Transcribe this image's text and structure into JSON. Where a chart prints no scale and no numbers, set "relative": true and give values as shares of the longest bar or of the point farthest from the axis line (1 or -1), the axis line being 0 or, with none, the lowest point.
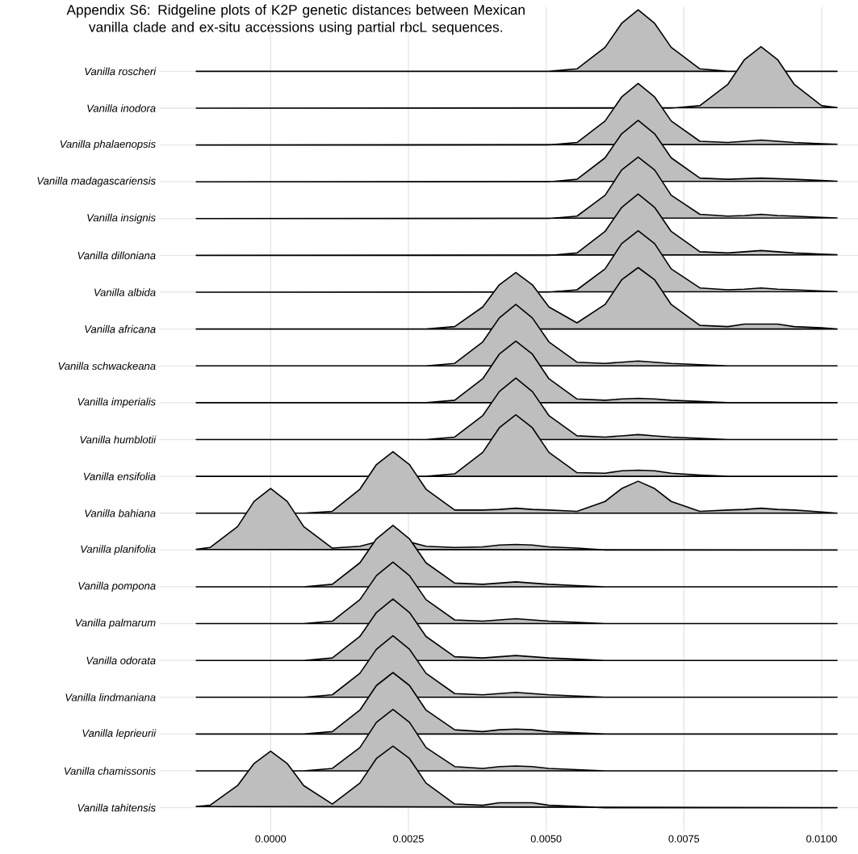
{
  "chart_data": [
    {
      "type": "area",
      "relative": true,
      "title": "Appendix S6: Ridgeline plots of K2P genetic distances between Mexican vanilla clade and ex-situ accessions using partial rbcL sequences.",
      "x": [
        -0.00135,
        -0.0011,
        -0.0006,
        -0.0003,
        0,
        0.0003,
        0.0006,
        0.00112,
        0.00162,
        0.00192,
        0.00222,
        0.00252,
        0.00282,
        0.00334,
        0.00385,
        0.00415,
        0.00445,
        0.00475,
        0.00505,
        0.00556,
        0.00607,
        0.00637,
        0.00667,
        0.00697,
        0.00727,
        0.00779,
        0.0083,
        0.0086,
        0.0089,
        0.0092,
        0.0095,
        0.01,
        0.01028
      ],
      "xlim": [
        -0.00202,
        0.01066
      ],
      "xticks": [
        {
          "value": 0,
          "label": null
        },
        {
          "value": 0.0025,
          "label": null
        },
        {
          "value": 0.005,
          "label": null
        },
        {
          "value": 0.0075,
          "label": null
        },
        {
          "value": 0.01,
          "label": null
        }
      ],
      "grid": "x",
      "tick_labels": false,
      "series": [
        {
          "name": "Vanilla roscheri",
          "color": "#bebebe",
          "values": [
            0,
            0,
            0,
            0,
            0,
            0,
            0,
            0,
            0,
            0,
            0,
            0,
            0,
            0,
            0,
            0,
            0,
            0,
            0,
            0.04,
            0.39,
            0.78,
            1,
            0.78,
            0.39,
            0.04,
            0,
            null,
            null,
            null,
            0,
            0,
            0
          ]
        }
      ]
    },
    {
      "type": "area",
      "relative": true,
      "x": [
        -0.00135,
        -0.0011,
        -0.0006,
        -0.0003,
        0,
        0.0003,
        0.0006,
        0.00112,
        0.00162,
        0.00192,
        0.00222,
        0.00252,
        0.00282,
        0.00334,
        0.00385,
        0.00415,
        0.00445,
        0.00475,
        0.00505,
        0.00556,
        0.00607,
        0.00637,
        0.00667,
        0.00697,
        0.00727,
        0.00779,
        0.0083,
        0.0086,
        0.0089,
        0.0092,
        0.0095,
        0.01,
        0.01028
      ],
      "xlim": [
        -0.00202,
        0.01066
      ],
      "xticks": [
        {
          "value": 0,
          "label": null
        },
        {
          "value": 0.0025,
          "label": null
        },
        {
          "value": 0.005,
          "label": null
        },
        {
          "value": 0.0075,
          "label": null
        },
        {
          "value": 0.01,
          "label": null
        }
      ],
      "grid": "x",
      "tick_labels": false,
      "series": [
        {
          "name": "Vanilla inodora",
          "color": "#bebebe",
          "values": [
            0,
            0,
            0,
            0,
            0,
            0,
            0,
            0,
            0,
            0,
            0,
            0,
            0,
            0,
            0,
            0,
            0,
            0,
            0,
            0,
            0,
            null,
            null,
            null,
            0,
            0.04,
            0.39,
            0.79,
            1,
            0.79,
            0.39,
            0.04,
            0.01
          ]
        }
      ]
    },
    {
      "type": "area",
      "relative": true,
      "x": [
        -0.00135,
        -0.0011,
        -0.0006,
        -0.0003,
        0,
        0.0003,
        0.0006,
        0.00112,
        0.00162,
        0.00192,
        0.00222,
        0.00252,
        0.00282,
        0.00334,
        0.00385,
        0.00415,
        0.00445,
        0.00475,
        0.00505,
        0.00556,
        0.00607,
        0.00637,
        0.00667,
        0.00697,
        0.00727,
        0.00779,
        0.0083,
        0.0086,
        0.0089,
        0.0092,
        0.0095,
        0.01,
        0.01028
      ],
      "xlim": [
        -0.00202,
        0.01066
      ],
      "xticks": [
        {
          "value": 0,
          "label": null
        },
        {
          "value": 0.0025,
          "label": null
        },
        {
          "value": 0.005,
          "label": null
        },
        {
          "value": 0.0075,
          "label": null
        },
        {
          "value": 0.01,
          "label": null
        }
      ],
      "grid": "x",
      "tick_labels": false,
      "series": [
        {
          "name": "Vanilla phalaenopsis",
          "color": "#bebebe",
          "values": [
            0,
            0,
            0,
            0,
            0,
            0,
            0,
            0,
            0,
            0,
            0,
            0,
            0,
            0,
            0,
            0,
            0,
            0,
            0,
            0.04,
            0.39,
            0.78,
            1,
            0.78,
            0.39,
            0.06,
            0.04,
            0.06,
            0.08,
            0.06,
            0.04,
            0.02,
            0.01
          ]
        }
      ]
    },
    {
      "type": "area",
      "relative": true,
      "x": [
        -0.00135,
        -0.0011,
        -0.0006,
        -0.0003,
        0,
        0.0003,
        0.0006,
        0.00112,
        0.00162,
        0.00192,
        0.00222,
        0.00252,
        0.00282,
        0.00334,
        0.00385,
        0.00415,
        0.00445,
        0.00475,
        0.00505,
        0.00556,
        0.00607,
        0.00637,
        0.00667,
        0.00697,
        0.00727,
        0.00779,
        0.0083,
        0.0086,
        0.0089,
        0.0092,
        0.0095,
        0.01,
        0.01028
      ],
      "xlim": [
        -0.00202,
        0.01066
      ],
      "xticks": [
        {
          "value": 0,
          "label": null
        },
        {
          "value": 0.0025,
          "label": null
        },
        {
          "value": 0.005,
          "label": null
        },
        {
          "value": 0.0075,
          "label": null
        },
        {
          "value": 0.01,
          "label": null
        }
      ],
      "grid": "x",
      "tick_labels": false,
      "series": [
        {
          "name": "Vanilla madagascariensis",
          "color": "#bebebe",
          "values": [
            0,
            0,
            0,
            0,
            0,
            0,
            0,
            0,
            0,
            0,
            0,
            0,
            0,
            0,
            0,
            0,
            0,
            0,
            0,
            0.04,
            0.39,
            0.78,
            1,
            0.78,
            0.39,
            0.06,
            0.04,
            0.05,
            0.06,
            0.05,
            0.04,
            0.02,
            0.01
          ]
        }
      ]
    },
    {
      "type": "area",
      "relative": true,
      "x": [
        -0.00135,
        -0.0011,
        -0.0006,
        -0.0003,
        0,
        0.0003,
        0.0006,
        0.00112,
        0.00162,
        0.00192,
        0.00222,
        0.00252,
        0.00282,
        0.00334,
        0.00385,
        0.00415,
        0.00445,
        0.00475,
        0.00505,
        0.00556,
        0.00607,
        0.00637,
        0.00667,
        0.00697,
        0.00727,
        0.00779,
        0.0083,
        0.0086,
        0.0089,
        0.0092,
        0.0095,
        0.01,
        0.01028
      ],
      "xlim": [
        -0.00202,
        0.01066
      ],
      "xticks": [
        {
          "value": 0,
          "label": null
        },
        {
          "value": 0.0025,
          "label": null
        },
        {
          "value": 0.005,
          "label": null
        },
        {
          "value": 0.0075,
          "label": null
        },
        {
          "value": 0.01,
          "label": null
        }
      ],
      "grid": "x",
      "tick_labels": false,
      "series": [
        {
          "name": "Vanilla insignis",
          "color": "#bebebe",
          "values": [
            0,
            0,
            0,
            0,
            0,
            0,
            0,
            0,
            0,
            0,
            0,
            0,
            0,
            0,
            0,
            0,
            0,
            0,
            0,
            0.04,
            0.38,
            0.79,
            1,
            0.79,
            0.38,
            0.07,
            0.04,
            0.05,
            0.07,
            0.05,
            0.04,
            0.02,
            0.01
          ]
        }
      ]
    },
    {
      "type": "area",
      "relative": true,
      "x": [
        -0.00135,
        -0.0011,
        -0.0006,
        -0.0003,
        0,
        0.0003,
        0.0006,
        0.00112,
        0.00162,
        0.00192,
        0.00222,
        0.00252,
        0.00282,
        0.00334,
        0.00385,
        0.00415,
        0.00445,
        0.00475,
        0.00505,
        0.00556,
        0.00607,
        0.00637,
        0.00667,
        0.00697,
        0.00727,
        0.00779,
        0.0083,
        0.0086,
        0.0089,
        0.0092,
        0.0095,
        0.01,
        0.01028
      ],
      "xlim": [
        -0.00202,
        0.01066
      ],
      "xticks": [
        {
          "value": 0,
          "label": null
        },
        {
          "value": 0.0025,
          "label": null
        },
        {
          "value": 0.005,
          "label": null
        },
        {
          "value": 0.0075,
          "label": null
        },
        {
          "value": 0.01,
          "label": null
        }
      ],
      "grid": "x",
      "tick_labels": false,
      "series": [
        {
          "name": "Vanilla dilloniana",
          "color": "#bebebe",
          "values": [
            0,
            0,
            0,
            0,
            0,
            0,
            0,
            0,
            0,
            0,
            0,
            0,
            0,
            0,
            0,
            0,
            0,
            0,
            0,
            0.04,
            0.39,
            0.78,
            1,
            0.78,
            0.39,
            0.06,
            0.04,
            0.06,
            0.08,
            0.06,
            0.04,
            0.02,
            0.01
          ]
        }
      ]
    },
    {
      "type": "area",
      "relative": true,
      "x": [
        -0.00135,
        -0.0011,
        -0.0006,
        -0.0003,
        0,
        0.0003,
        0.0006,
        0.00112,
        0.00162,
        0.00192,
        0.00222,
        0.00252,
        0.00282,
        0.00334,
        0.00385,
        0.00415,
        0.00445,
        0.00475,
        0.00505,
        0.00556,
        0.00607,
        0.00637,
        0.00667,
        0.00697,
        0.00727,
        0.00779,
        0.0083,
        0.0086,
        0.0089,
        0.0092,
        0.0095,
        0.01,
        0.01028
      ],
      "xlim": [
        -0.00202,
        0.01066
      ],
      "xticks": [
        {
          "value": 0,
          "label": null
        },
        {
          "value": 0.0025,
          "label": null
        },
        {
          "value": 0.005,
          "label": null
        },
        {
          "value": 0.0075,
          "label": null
        },
        {
          "value": 0.01,
          "label": null
        }
      ],
      "grid": "x",
      "tick_labels": false,
      "series": [
        {
          "name": "Vanilla albida",
          "color": "#bebebe",
          "values": [
            0,
            0,
            0,
            0,
            0,
            0,
            0,
            0,
            0,
            0,
            0,
            0,
            0,
            0,
            0,
            null,
            null,
            null,
            0,
            0.04,
            0.38,
            0.79,
            1,
            0.79,
            0.38,
            0.07,
            0.04,
            0.05,
            0.07,
            0.05,
            0.04,
            0.02,
            0.01
          ]
        }
      ]
    },
    {
      "type": "area",
      "relative": true,
      "x": [
        -0.00135,
        -0.0011,
        -0.0006,
        -0.0003,
        0,
        0.0003,
        0.0006,
        0.00112,
        0.00162,
        0.00192,
        0.00222,
        0.00252,
        0.00282,
        0.00334,
        0.00385,
        0.00415,
        0.00445,
        0.00475,
        0.00505,
        0.00556,
        0.00607,
        0.00637,
        0.00667,
        0.00697,
        0.00727,
        0.00779,
        0.0083,
        0.0086,
        0.0089,
        0.0092,
        0.0095,
        0.01,
        0.01028
      ],
      "xlim": [
        -0.00202,
        0.01066
      ],
      "xticks": [
        {
          "value": 0,
          "label": null
        },
        {
          "value": 0.0025,
          "label": null
        },
        {
          "value": 0.005,
          "label": null
        },
        {
          "value": 0.0075,
          "label": null
        },
        {
          "value": 0.01,
          "label": null
        }
      ],
      "grid": "x",
      "tick_labels": false,
      "series": [
        {
          "name": "Vanilla africana",
          "color": "#bebebe",
          "values": [
            0,
            0,
            0,
            0,
            0,
            0,
            0,
            0,
            0,
            0,
            0,
            0,
            0,
            0.04,
            0.36,
            0.72,
            0.92,
            0.72,
            0.36,
            0.1,
            0.4,
            0.8,
            1,
            0.8,
            0.4,
            0.06,
            0.04,
            0.08,
            0.08,
            0.08,
            0.04,
            0.02,
            0
          ]
        }
      ]
    },
    {
      "type": "area",
      "relative": true,
      "x": [
        -0.00135,
        -0.0011,
        -0.0006,
        -0.0003,
        0,
        0.0003,
        0.0006,
        0.00112,
        0.00162,
        0.00192,
        0.00222,
        0.00252,
        0.00282,
        0.00334,
        0.00385,
        0.00415,
        0.00445,
        0.00475,
        0.00505,
        0.00556,
        0.00607,
        0.00637,
        0.00667,
        0.00697,
        0.00727,
        0.00779,
        0.0083,
        0.0086,
        0.0089,
        0.0092,
        0.0095,
        0.01,
        0.01028
      ],
      "xlim": [
        -0.00202,
        0.01066
      ],
      "xticks": [
        {
          "value": 0,
          "label": null
        },
        {
          "value": 0.0025,
          "label": null
        },
        {
          "value": 0.005,
          "label": null
        },
        {
          "value": 0.0075,
          "label": null
        },
        {
          "value": 0.01,
          "label": null
        }
      ],
      "grid": "x",
      "tick_labels": false,
      "series": [
        {
          "name": "Vanilla schwackeana",
          "color": "#bebebe",
          "values": [
            0,
            0,
            0,
            0,
            0,
            0,
            0,
            0,
            0,
            0,
            0,
            0,
            0,
            0.04,
            0.39,
            0.78,
            1,
            0.78,
            0.39,
            0.06,
            0.04,
            0.06,
            0.08,
            0.06,
            0.04,
            0.02,
            0,
            0,
            0,
            0,
            0,
            0,
            0
          ]
        }
      ]
    },
    {
      "type": "area",
      "relative": true,
      "x": [
        -0.00135,
        -0.0011,
        -0.0006,
        -0.0003,
        0,
        0.0003,
        0.0006,
        0.00112,
        0.00162,
        0.00192,
        0.00222,
        0.00252,
        0.00282,
        0.00334,
        0.00385,
        0.00415,
        0.00445,
        0.00475,
        0.00505,
        0.00556,
        0.00607,
        0.00637,
        0.00667,
        0.00697,
        0.00727,
        0.00779,
        0.0083,
        0.0086,
        0.0089,
        0.0092,
        0.0095,
        0.01,
        0.01028
      ],
      "xlim": [
        -0.00202,
        0.01066
      ],
      "xticks": [
        {
          "value": 0,
          "label": null
        },
        {
          "value": 0.0025,
          "label": null
        },
        {
          "value": 0.005,
          "label": null
        },
        {
          "value": 0.0075,
          "label": null
        },
        {
          "value": 0.01,
          "label": null
        }
      ],
      "grid": "x",
      "tick_labels": false,
      "series": [
        {
          "name": "Vanilla imperialis",
          "color": "#bebebe",
          "values": [
            0,
            0,
            0,
            0,
            0,
            0,
            0,
            0,
            0,
            0,
            0,
            0,
            0,
            0.04,
            0.39,
            0.79,
            1,
            0.79,
            0.39,
            0.06,
            0.04,
            0.06,
            0.07,
            0.06,
            0.04,
            0.02,
            0,
            0,
            0,
            0,
            0,
            0,
            0
          ]
        }
      ]
    },
    {
      "type": "area",
      "relative": true,
      "x": [
        -0.00135,
        -0.0011,
        -0.0006,
        -0.0003,
        0,
        0.0003,
        0.0006,
        0.00112,
        0.00162,
        0.00192,
        0.00222,
        0.00252,
        0.00282,
        0.00334,
        0.00385,
        0.00415,
        0.00445,
        0.00475,
        0.00505,
        0.00556,
        0.00607,
        0.00637,
        0.00667,
        0.00697,
        0.00727,
        0.00779,
        0.0083,
        0.0086,
        0.0089,
        0.0092,
        0.0095,
        0.01,
        0.01028
      ],
      "xlim": [
        -0.00202,
        0.01066
      ],
      "xticks": [
        {
          "value": 0,
          "label": null
        },
        {
          "value": 0.0025,
          "label": null
        },
        {
          "value": 0.005,
          "label": null
        },
        {
          "value": 0.0075,
          "label": null
        },
        {
          "value": 0.01,
          "label": null
        }
      ],
      "grid": "x",
      "tick_labels": false,
      "series": [
        {
          "name": "Vanilla humblotii",
          "color": "#bebebe",
          "values": [
            0,
            0,
            0,
            0,
            0,
            0,
            0,
            0,
            0,
            0,
            0,
            0,
            0,
            0.04,
            0.39,
            0.78,
            1,
            0.78,
            0.39,
            0.06,
            0.04,
            0.06,
            0.08,
            0.06,
            0.04,
            0.02,
            0,
            0,
            0,
            0,
            0,
            0,
            0
          ]
        }
      ]
    },
    {
      "type": "area",
      "relative": true,
      "x": [
        -0.00135,
        -0.0011,
        -0.0006,
        -0.0003,
        0,
        0.0003,
        0.0006,
        0.00112,
        0.00162,
        0.00192,
        0.00222,
        0.00252,
        0.00282,
        0.00334,
        0.00385,
        0.00415,
        0.00445,
        0.00475,
        0.00505,
        0.00556,
        0.00607,
        0.00637,
        0.00667,
        0.00697,
        0.00727,
        0.00779,
        0.0083,
        0.0086,
        0.0089,
        0.0092,
        0.0095,
        0.01,
        0.01028
      ],
      "xlim": [
        -0.00202,
        0.01066
      ],
      "xticks": [
        {
          "value": 0,
          "label": null
        },
        {
          "value": 0.0025,
          "label": null
        },
        {
          "value": 0.005,
          "label": null
        },
        {
          "value": 0.0075,
          "label": null
        },
        {
          "value": 0.01,
          "label": null
        }
      ],
      "grid": "x",
      "tick_labels": false,
      "series": [
        {
          "name": "Vanilla ensifolia",
          "color": "#bebebe",
          "values": [
            0,
            0,
            0,
            0,
            0,
            0,
            0,
            0,
            0,
            null,
            null,
            null,
            0,
            0.04,
            0.39,
            0.79,
            1,
            0.79,
            0.39,
            0.06,
            0.05,
            0.09,
            0.1,
            0.09,
            0.05,
            0.02,
            0,
            0,
            0,
            0,
            0,
            0,
            0
          ]
        }
      ]
    },
    {
      "type": "area",
      "relative": true,
      "x": [
        -0.00135,
        -0.0011,
        -0.0006,
        -0.0003,
        0,
        0.0003,
        0.0006,
        0.00112,
        0.00162,
        0.00192,
        0.00222,
        0.00252,
        0.00282,
        0.00334,
        0.00385,
        0.00415,
        0.00445,
        0.00475,
        0.00505,
        0.00556,
        0.00607,
        0.00637,
        0.00667,
        0.00697,
        0.00727,
        0.00779,
        0.0083,
        0.0086,
        0.0089,
        0.0092,
        0.0095,
        0.01,
        0.01028
      ],
      "xlim": [
        -0.00202,
        0.01066
      ],
      "xticks": [
        {
          "value": 0,
          "label": null
        },
        {
          "value": 0.0025,
          "label": null
        },
        {
          "value": 0.005,
          "label": null
        },
        {
          "value": 0.0075,
          "label": null
        },
        {
          "value": 0.01,
          "label": null
        }
      ],
      "grid": "x",
      "tick_labels": false,
      "series": [
        {
          "name": "Vanilla bahiana",
          "color": "#bebebe",
          "values": [
            0,
            0,
            0,
            null,
            null,
            null,
            0,
            0.03,
            0.39,
            0.79,
            1,
            0.79,
            0.39,
            0.05,
            0.05,
            0.06,
            0.08,
            0.06,
            0.05,
            0.03,
            0.19,
            0.4,
            0.52,
            0.4,
            0.19,
            0.03,
            0.05,
            0.06,
            0.08,
            0.06,
            0.05,
            0.02,
            0
          ]
        }
      ]
    },
    {
      "type": "area",
      "relative": true,
      "x": [
        -0.00135,
        -0.0011,
        -0.0006,
        -0.0003,
        0,
        0.0003,
        0.0006,
        0.00112,
        0.00162,
        0.00192,
        0.00222,
        0.00252,
        0.00282,
        0.00334,
        0.00385,
        0.00415,
        0.00445,
        0.00475,
        0.00505,
        0.00556,
        0.00607,
        0.00637,
        0.00667,
        0.00697,
        0.00727,
        0.00779,
        0.0083,
        0.0086,
        0.0089,
        0.0092,
        0.0095,
        0.01,
        0.01028
      ],
      "xlim": [
        -0.00202,
        0.01066
      ],
      "xticks": [
        {
          "value": 0,
          "label": null
        },
        {
          "value": 0.0025,
          "label": null
        },
        {
          "value": 0.005,
          "label": null
        },
        {
          "value": 0.0075,
          "label": null
        },
        {
          "value": 0.01,
          "label": null
        }
      ],
      "grid": "x",
      "tick_labels": false,
      "series": [
        {
          "name": "Vanilla planifolia",
          "color": "#bebebe",
          "values": [
            0.01,
            0.04,
            0.38,
            0.79,
            1,
            0.79,
            0.38,
            0.03,
            0.06,
            0.13,
            null,
            0.13,
            0.06,
            0.04,
            0.05,
            0.08,
            0.09,
            0.08,
            0.05,
            0.03,
            0,
            0,
            0,
            0,
            0,
            0,
            0,
            0,
            0,
            0,
            0,
            0,
            0
          ]
        }
      ]
    },
    {
      "type": "area",
      "relative": true,
      "x": [
        -0.00135,
        -0.0011,
        -0.0006,
        -0.0003,
        0,
        0.0003,
        0.0006,
        0.00112,
        0.00162,
        0.00192,
        0.00222,
        0.00252,
        0.00282,
        0.00334,
        0.00385,
        0.00415,
        0.00445,
        0.00475,
        0.00505,
        0.00556,
        0.00607,
        0.00637,
        0.00667,
        0.00697,
        0.00727,
        0.00779,
        0.0083,
        0.0086,
        0.0089,
        0.0092,
        0.0095,
        0.01,
        0.01028
      ],
      "xlim": [
        -0.00202,
        0.01066
      ],
      "xticks": [
        {
          "value": 0,
          "label": null
        },
        {
          "value": 0.0025,
          "label": null
        },
        {
          "value": 0.005,
          "label": null
        },
        {
          "value": 0.0075,
          "label": null
        },
        {
          "value": 0.01,
          "label": null
        }
      ],
      "grid": "x",
      "tick_labels": false,
      "series": [
        {
          "name": "Vanilla pompona",
          "color": "#bebebe",
          "values": [
            0,
            0,
            0,
            0,
            0,
            0,
            0,
            0.04,
            0.39,
            0.78,
            1,
            0.78,
            0.39,
            0.06,
            0.04,
            0.06,
            0.08,
            0.06,
            0.04,
            0.02,
            0,
            0,
            0,
            0,
            0,
            0,
            0,
            0,
            0,
            0,
            0,
            0,
            0
          ]
        }
      ]
    },
    {
      "type": "area",
      "relative": true,
      "x": [
        -0.00135,
        -0.0011,
        -0.0006,
        -0.0003,
        0,
        0.0003,
        0.0006,
        0.00112,
        0.00162,
        0.00192,
        0.00222,
        0.00252,
        0.00282,
        0.00334,
        0.00385,
        0.00415,
        0.00445,
        0.00475,
        0.00505,
        0.00556,
        0.00607,
        0.00637,
        0.00667,
        0.00697,
        0.00727,
        0.00779,
        0.0083,
        0.0086,
        0.0089,
        0.0092,
        0.0095,
        0.01,
        0.01028
      ],
      "xlim": [
        -0.00202,
        0.01066
      ],
      "xticks": [
        {
          "value": 0,
          "label": null
        },
        {
          "value": 0.0025,
          "label": null
        },
        {
          "value": 0.005,
          "label": null
        },
        {
          "value": 0.0075,
          "label": null
        },
        {
          "value": 0.01,
          "label": null
        }
      ],
      "grid": "x",
      "tick_labels": false,
      "series": [
        {
          "name": "Vanilla palmarum",
          "color": "#bebebe",
          "values": [
            0,
            0,
            0,
            0,
            0,
            0,
            0,
            0.04,
            0.39,
            0.78,
            1,
            0.78,
            0.39,
            0.06,
            0.04,
            0.06,
            0.08,
            0.06,
            0.04,
            0.02,
            0,
            0,
            0,
            0,
            0,
            0,
            0,
            0,
            0,
            0,
            0,
            0,
            0
          ]
        }
      ]
    },
    {
      "type": "area",
      "relative": true,
      "x": [
        -0.00135,
        -0.0011,
        -0.0006,
        -0.0003,
        0,
        0.0003,
        0.0006,
        0.00112,
        0.00162,
        0.00192,
        0.00222,
        0.00252,
        0.00282,
        0.00334,
        0.00385,
        0.00415,
        0.00445,
        0.00475,
        0.00505,
        0.00556,
        0.00607,
        0.00637,
        0.00667,
        0.00697,
        0.00727,
        0.00779,
        0.0083,
        0.0086,
        0.0089,
        0.0092,
        0.0095,
        0.01,
        0.01028
      ],
      "xlim": [
        -0.00202,
        0.01066
      ],
      "xticks": [
        {
          "value": 0,
          "label": null
        },
        {
          "value": 0.0025,
          "label": null
        },
        {
          "value": 0.005,
          "label": null
        },
        {
          "value": 0.0075,
          "label": null
        },
        {
          "value": 0.01,
          "label": null
        }
      ],
      "grid": "x",
      "tick_labels": false,
      "series": [
        {
          "name": "Vanilla odorata",
          "color": "#bebebe",
          "values": [
            0,
            0,
            0,
            0,
            0,
            0,
            0,
            0.04,
            0.39,
            0.78,
            1,
            0.78,
            0.39,
            0.06,
            0.04,
            0.06,
            0.08,
            0.06,
            0.04,
            0.02,
            0,
            0,
            0,
            0,
            0,
            0,
            0,
            0,
            0,
            0,
            0,
            0,
            0
          ]
        }
      ]
    },
    {
      "type": "area",
      "relative": true,
      "x": [
        -0.00135,
        -0.0011,
        -0.0006,
        -0.0003,
        0,
        0.0003,
        0.0006,
        0.00112,
        0.00162,
        0.00192,
        0.00222,
        0.00252,
        0.00282,
        0.00334,
        0.00385,
        0.00415,
        0.00445,
        0.00475,
        0.00505,
        0.00556,
        0.00607,
        0.00637,
        0.00667,
        0.00697,
        0.00727,
        0.00779,
        0.0083,
        0.0086,
        0.0089,
        0.0092,
        0.0095,
        0.01,
        0.01028
      ],
      "xlim": [
        -0.00202,
        0.01066
      ],
      "xticks": [
        {
          "value": 0,
          "label": null
        },
        {
          "value": 0.0025,
          "label": null
        },
        {
          "value": 0.005,
          "label": null
        },
        {
          "value": 0.0075,
          "label": null
        },
        {
          "value": 0.01,
          "label": null
        }
      ],
      "grid": "x",
      "tick_labels": false,
      "series": [
        {
          "name": "Vanilla lindmaniana",
          "color": "#bebebe",
          "values": [
            0,
            0,
            0,
            0,
            0,
            0,
            0,
            0.04,
            0.39,
            0.78,
            1,
            0.78,
            0.39,
            0.06,
            0.04,
            0.06,
            0.08,
            0.06,
            0.04,
            0.02,
            0,
            0,
            0,
            0,
            0,
            0,
            0,
            0,
            0,
            0,
            0,
            0,
            0
          ]
        }
      ]
    },
    {
      "type": "area",
      "relative": true,
      "x": [
        -0.00135,
        -0.0011,
        -0.0006,
        -0.0003,
        0,
        0.0003,
        0.0006,
        0.00112,
        0.00162,
        0.00192,
        0.00222,
        0.00252,
        0.00282,
        0.00334,
        0.00385,
        0.00415,
        0.00445,
        0.00475,
        0.00505,
        0.00556,
        0.00607,
        0.00637,
        0.00667,
        0.00697,
        0.00727,
        0.00779,
        0.0083,
        0.0086,
        0.0089,
        0.0092,
        0.0095,
        0.01,
        0.01028
      ],
      "xlim": [
        -0.00202,
        0.01066
      ],
      "xticks": [
        {
          "value": 0,
          "label": null
        },
        {
          "value": 0.0025,
          "label": null
        },
        {
          "value": 0.005,
          "label": null
        },
        {
          "value": 0.0075,
          "label": null
        },
        {
          "value": 0.01,
          "label": null
        }
      ],
      "grid": "x",
      "tick_labels": false,
      "series": [
        {
          "name": "Vanilla leprieurii",
          "color": "#bebebe",
          "values": [
            0,
            0,
            0,
            0,
            0,
            0,
            0,
            0.04,
            0.39,
            0.79,
            1,
            0.79,
            0.39,
            0.07,
            0.04,
            0.07,
            0.08,
            0.07,
            0.04,
            0.02,
            0,
            0,
            0,
            0,
            0,
            0,
            0,
            0,
            0,
            0,
            0,
            0,
            0
          ]
        }
      ]
    },
    {
      "type": "area",
      "relative": true,
      "x": [
        -0.00135,
        -0.0011,
        -0.0006,
        -0.0003,
        0,
        0.0003,
        0.0006,
        0.00112,
        0.00162,
        0.00192,
        0.00222,
        0.00252,
        0.00282,
        0.00334,
        0.00385,
        0.00415,
        0.00445,
        0.00475,
        0.00505,
        0.00556,
        0.00607,
        0.00637,
        0.00667,
        0.00697,
        0.00727,
        0.00779,
        0.0083,
        0.0086,
        0.0089,
        0.0092,
        0.0095,
        0.01,
        0.01028
      ],
      "xlim": [
        -0.00202,
        0.01066
      ],
      "xticks": [
        {
          "value": 0,
          "label": null
        },
        {
          "value": 0.0025,
          "label": null
        },
        {
          "value": 0.005,
          "label": null
        },
        {
          "value": 0.0075,
          "label": null
        },
        {
          "value": 0.01,
          "label": null
        }
      ],
      "grid": "x",
      "tick_labels": false,
      "series": [
        {
          "name": "Vanilla chamissonis",
          "color": "#bebebe",
          "values": [
            0,
            0,
            0,
            null,
            null,
            null,
            0,
            0.04,
            0.38,
            0.79,
            1,
            0.79,
            0.38,
            0.07,
            0.04,
            0.07,
            0.08,
            0.07,
            0.04,
            0.02,
            0,
            0,
            0,
            0,
            0,
            0,
            0,
            0,
            0,
            0,
            0,
            0,
            0
          ]
        }
      ]
    },
    {
      "type": "area",
      "relative": true,
      "x": [
        -0.00135,
        -0.0011,
        -0.0006,
        -0.0003,
        0,
        0.0003,
        0.0006,
        0.00112,
        0.00162,
        0.00192,
        0.00222,
        0.00252,
        0.00282,
        0.00334,
        0.00385,
        0.00415,
        0.00445,
        0.00475,
        0.00505,
        0.00556,
        0.00607,
        0.00637,
        0.00667,
        0.00697,
        0.00727,
        0.00779,
        0.0083,
        0.0086,
        0.0089,
        0.0092,
        0.0095,
        0.01,
        0.01028
      ],
      "xlim": [
        -0.00202,
        0.01066
      ],
      "xticks": [
        {
          "value": 0,
          "label": "0.0000"
        },
        {
          "value": 0.0025,
          "label": "0.0025"
        },
        {
          "value": 0.005,
          "label": "0.0050"
        },
        {
          "value": 0.0075,
          "label": "0.0075"
        },
        {
          "value": 0.01,
          "label": "0.0100"
        }
      ],
      "grid": "x",
      "tick_labels": "x",
      "series": [
        {
          "name": "Vanilla tahitensis",
          "color": "#bebebe",
          "values": [
            0.02,
            0.04,
            0.36,
            0.72,
            0.92,
            0.72,
            0.36,
            0.06,
            0.4,
            0.8,
            1,
            0.8,
            0.4,
            0.06,
            0.04,
            0.08,
            0.08,
            0.08,
            0.04,
            0.02,
            0,
            0,
            0,
            0,
            0,
            0,
            0,
            0,
            0,
            0,
            0,
            0,
            0
          ]
        }
      ]
    }
  ]
}
